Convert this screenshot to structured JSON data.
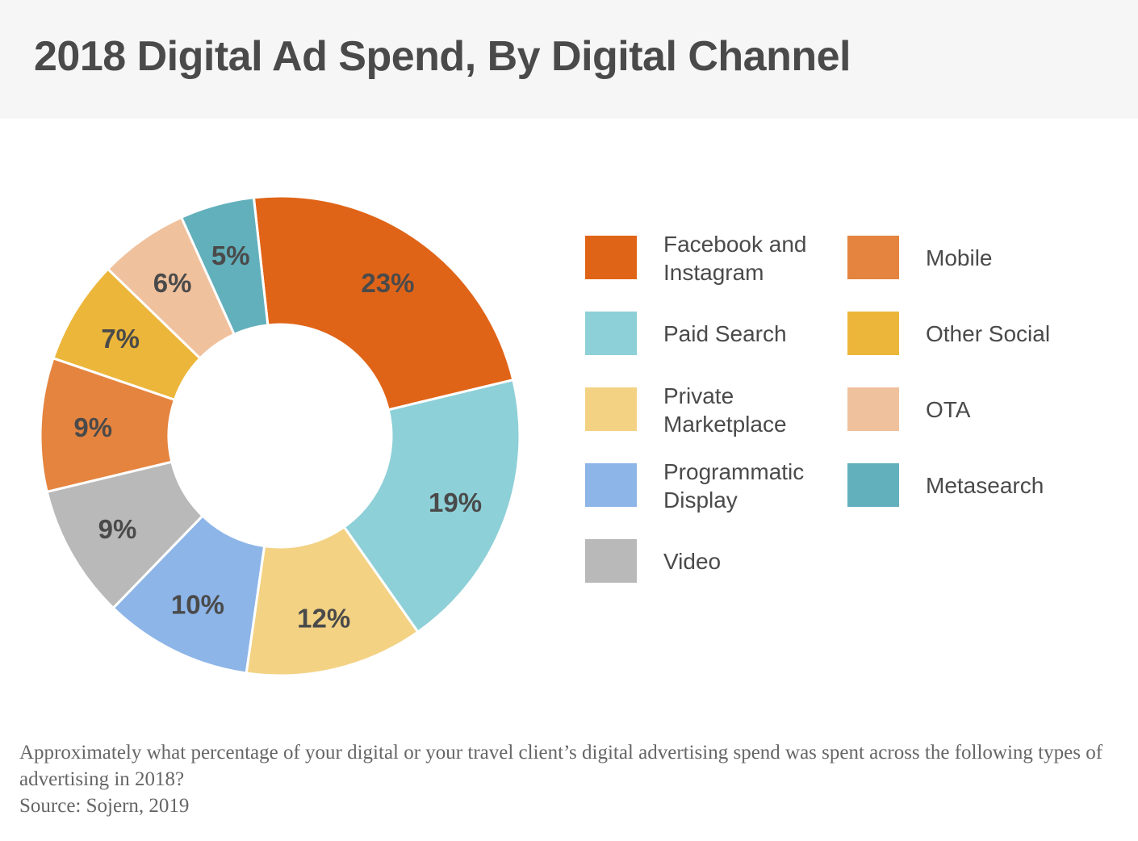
{
  "chart_data": {
    "type": "pie",
    "variant": "donut",
    "title": "2018 Digital Ad Spend, By Digital Channel",
    "categories": [
      "Facebook and Instagram",
      "Paid Search",
      "Private Marketplace",
      "Programmatic Display",
      "Video",
      "Mobile",
      "Other Social",
      "OTA",
      "Metasearch"
    ],
    "values": [
      23,
      19,
      12,
      10,
      9,
      9,
      7,
      6,
      5
    ],
    "value_labels": [
      "23%",
      "19%",
      "12%",
      "10%",
      "9%",
      "9%",
      "7%",
      "6%",
      "5%"
    ],
    "colors": [
      "#e06418",
      "#8ed0d8",
      "#f3d284",
      "#8db5e8",
      "#b9b9b9",
      "#e5843f",
      "#ecb63a",
      "#f0c19d",
      "#62b0bc"
    ],
    "legend_placement": "right",
    "legend_columns": [
      [
        "Facebook and Instagram",
        "Paid Search",
        "Private Marketplace",
        "Programmatic Display",
        "Video"
      ],
      [
        "Mobile",
        "Other Social",
        "OTA",
        "Metasearch"
      ]
    ]
  },
  "legend_lines": {
    "Facebook and Instagram": [
      "Facebook and",
      "Instagram"
    ],
    "Private Marketplace": [
      "Private",
      "Marketplace"
    ],
    "Programmatic Display": [
      "Programmatic",
      "Display"
    ]
  },
  "footnote": {
    "question": "Approximately what percentage of your digital or your travel client’s digital advertising spend was spent across the following types of advertising in 2018?",
    "source": "Source: Sojern, 2019"
  }
}
